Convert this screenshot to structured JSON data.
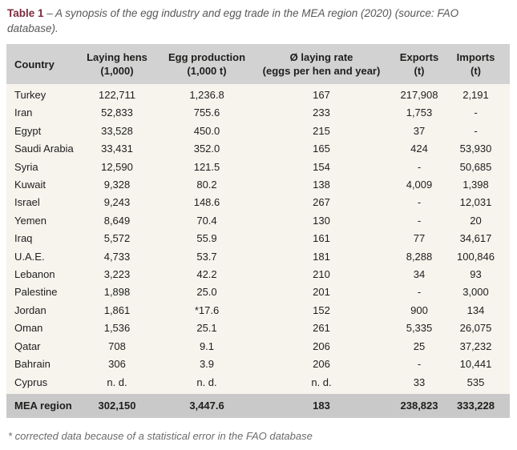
{
  "caption": {
    "title": "Table 1",
    "body": "– A synopsis of the egg industry and egg trade in the MEA region (2020) (source: FAO database)."
  },
  "table": {
    "columns": [
      {
        "line1": "Country",
        "line2": ""
      },
      {
        "line1": "Laying hens",
        "line2": "(1,000)"
      },
      {
        "line1": "Egg production",
        "line2": "(1,000 t)"
      },
      {
        "line1": "Ø laying rate",
        "line2": "(eggs per hen and year)"
      },
      {
        "line1": "Exports",
        "line2": "(t)"
      },
      {
        "line1": "Imports",
        "line2": "(t)"
      }
    ],
    "rows": [
      [
        "Turkey",
        "122,711",
        "1,236.8",
        "167",
        "217,908",
        "2,191"
      ],
      [
        "Iran",
        "52,833",
        "755.6",
        "233",
        "1,753",
        "-"
      ],
      [
        "Egypt",
        "33,528",
        "450.0",
        "215",
        "37",
        "-"
      ],
      [
        "Saudi Arabia",
        "33,431",
        "352.0",
        "165",
        "424",
        "53,930"
      ],
      [
        "Syria",
        "12,590",
        "121.5",
        "154",
        "-",
        "50,685"
      ],
      [
        "Kuwait",
        "9,328",
        "80.2",
        "138",
        "4,009",
        "1,398"
      ],
      [
        "Israel",
        "9,243",
        "148.6",
        "267",
        "-",
        "12,031"
      ],
      [
        "Yemen",
        "8,649",
        "70.4",
        "130",
        "-",
        "20"
      ],
      [
        "Iraq",
        "5,572",
        "55.9",
        "161",
        "77",
        "34,617"
      ],
      [
        "U.A.E.",
        "4,733",
        "53.7",
        "181",
        "8,288",
        "100,846"
      ],
      [
        "Lebanon",
        "3,223",
        "42.2",
        "210",
        "34",
        "93"
      ],
      [
        "Palestine",
        "1,898",
        "25.0",
        "201",
        "-",
        "3,000"
      ],
      [
        "Jordan",
        "1,861",
        "*17.6",
        "152",
        "900",
        "134"
      ],
      [
        "Oman",
        "1,536",
        "25.1",
        "261",
        "5,335",
        "26,075"
      ],
      [
        "Qatar",
        "708",
        "9.1",
        "206",
        "25",
        "37,232"
      ],
      [
        "Bahrain",
        "306",
        "3.9",
        "206",
        "-",
        "10,441"
      ],
      [
        "Cyprus",
        "n. d.",
        "n. d.",
        "n. d.",
        "33",
        "535"
      ]
    ],
    "footer": [
      "MEA region",
      "302,150",
      "3,447.6",
      "183",
      "238,823",
      "333,228"
    ]
  },
  "footnote": "* corrected data because of a statistical error in the FAO database",
  "colors": {
    "accent": "#7b2b3d",
    "header_bg": "#d3d2d2",
    "footer_bg": "#c9c9c9",
    "body_bg": "#f7f4ee",
    "text": "#1e1e1c",
    "muted": "#57585a"
  }
}
